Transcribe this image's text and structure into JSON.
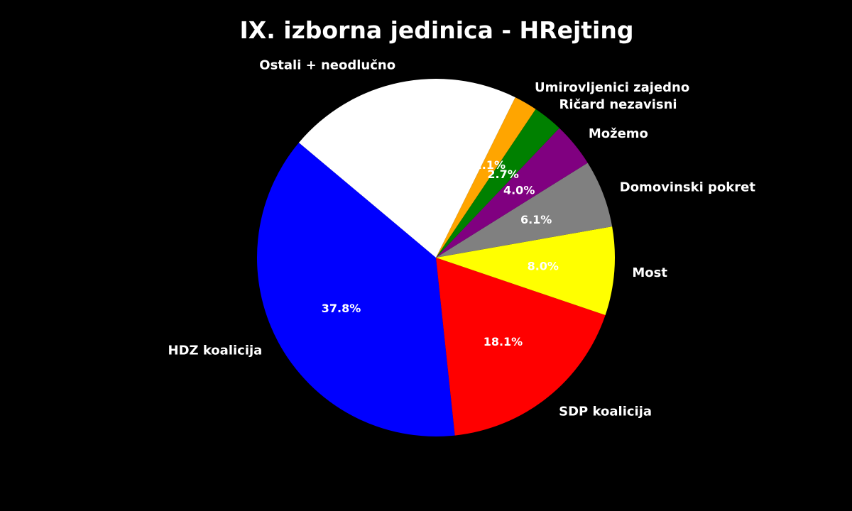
{
  "chart_data": {
    "type": "pie",
    "title": "IX. izborna jedinica - HRejting",
    "start_angle_deg": 140,
    "direction": "counterclockwise",
    "slices": [
      {
        "label": "HDZ koalicija",
        "value": 37.8,
        "pct_label": "37.8%",
        "color": "#0000ff"
      },
      {
        "label": "SDP koalicija",
        "value": 18.1,
        "pct_label": "18.1%",
        "color": "#ff0000"
      },
      {
        "label": "Most",
        "value": 8.0,
        "pct_label": "8.0%",
        "color": "#ffff00"
      },
      {
        "label": "Domovinski pokret",
        "value": 6.1,
        "pct_label": "6.1%",
        "color": "#808080"
      },
      {
        "label": "Možemo",
        "value": 4.0,
        "pct_label": "4.0%",
        "color": "#800080"
      },
      {
        "label": "Ričard nezavisni",
        "value": 2.7,
        "pct_label": "2.7%",
        "color": "#008000"
      },
      {
        "label": "Umirovljenici zajedno",
        "value": 2.1,
        "pct_label": "2.1%",
        "color": "#ffa500"
      },
      {
        "label": "Ostali + neodlučno",
        "value": 21.2,
        "pct_label": "21.2%",
        "color": "#ffffff"
      }
    ],
    "text_color": "#ffffff",
    "background": "#000000"
  }
}
